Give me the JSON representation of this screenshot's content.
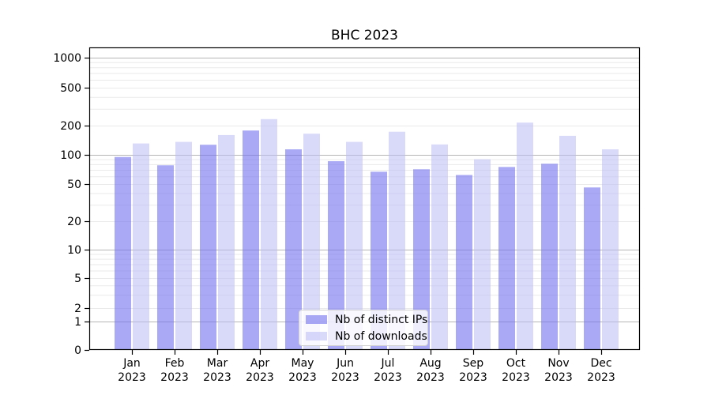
{
  "chart_data": {
    "type": "bar",
    "title": "BHC 2023",
    "categories": [
      "Jan 2023",
      "Feb 2023",
      "Mar 2023",
      "Apr 2023",
      "May 2023",
      "Jun 2023",
      "Jul 2023",
      "Aug 2023",
      "Sep 2023",
      "Oct 2023",
      "Nov 2023",
      "Dec 2023"
    ],
    "x_months": [
      "Jan",
      "Feb",
      "Mar",
      "Apr",
      "May",
      "Jun",
      "Jul",
      "Aug",
      "Sep",
      "Oct",
      "Nov",
      "Dec"
    ],
    "x_year": "2023",
    "series": [
      {
        "name": "Nb of distinct IPs",
        "color": "rgba(116,116,239,0.62)",
        "values": [
          95,
          78,
          127,
          178,
          114,
          86,
          67,
          71,
          62,
          75,
          81,
          46
        ]
      },
      {
        "name": "Nb of downloads",
        "color": "rgba(186,186,246,0.55)",
        "values": [
          131,
          136,
          160,
          234,
          165,
          136,
          173,
          128,
          90,
          215,
          157,
          114
        ]
      }
    ],
    "yscale": "asinh",
    "y_ticks": [
      0,
      1,
      2,
      5,
      10,
      20,
      50,
      100,
      200,
      500,
      1000
    ],
    "ylim": [
      0,
      1270
    ],
    "xlabel": "",
    "ylabel": "",
    "grid": "horizontal",
    "legend_position": "lower center",
    "colors": {
      "major_gridline": "#b5b5b5",
      "minor_gridline": "#eaeaea",
      "spine": "#000000",
      "text": "#000000"
    }
  }
}
